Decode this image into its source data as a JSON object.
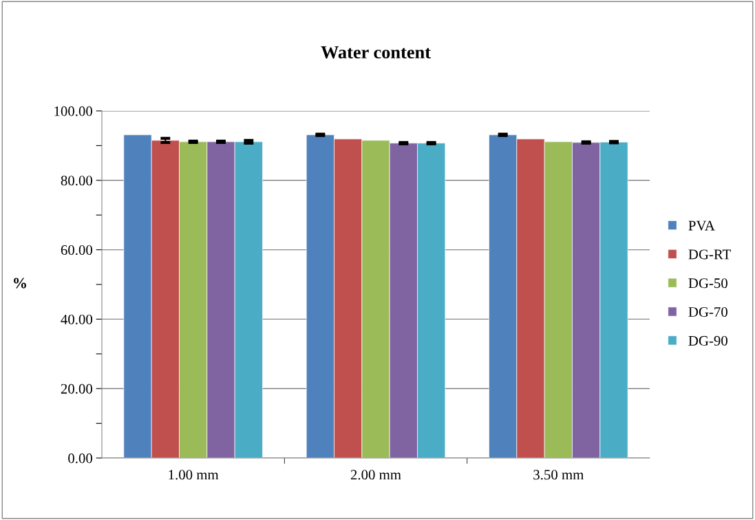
{
  "chart_data": {
    "type": "bar",
    "title": "Water content",
    "ylabel": "%",
    "categories": [
      "1.00 mm",
      "2.00 mm",
      "3.50 mm"
    ],
    "series": [
      {
        "name": "PVA",
        "color": "#4f81bd",
        "values": [
          93.1,
          93.1,
          93.1
        ],
        "errors": [
          null,
          0.2,
          0.2
        ]
      },
      {
        "name": "DG-RT",
        "color": "#c0504d",
        "values": [
          91.5,
          91.9,
          91.9
        ],
        "errors": [
          0.6,
          null,
          null
        ]
      },
      {
        "name": "DG-50",
        "color": "#9bbb59",
        "values": [
          91.1,
          91.5,
          91.1
        ],
        "errors": [
          0.2,
          null,
          null
        ]
      },
      {
        "name": "DG-70",
        "color": "#8064a2",
        "values": [
          91.1,
          90.7,
          90.9
        ],
        "errors": [
          0.2,
          0.2,
          0.2
        ]
      },
      {
        "name": "DG-90",
        "color": "#4bacc6",
        "values": [
          91.1,
          90.7,
          91.0
        ],
        "errors": [
          0.4,
          0.2,
          0.2
        ]
      }
    ],
    "ylim": [
      0,
      100
    ],
    "yticks": [
      {
        "value": 0,
        "label": "0.00"
      },
      {
        "value": 10,
        "label": null
      },
      {
        "value": 20,
        "label": "20.00"
      },
      {
        "value": 30,
        "label": null
      },
      {
        "value": 40,
        "label": "40.00"
      },
      {
        "value": 50,
        "label": null
      },
      {
        "value": 60,
        "label": "60.00"
      },
      {
        "value": 70,
        "label": null
      },
      {
        "value": 80,
        "label": "80.00"
      },
      {
        "value": 90,
        "label": null
      },
      {
        "value": 100,
        "label": "100.00"
      }
    ],
    "grid": "y",
    "legend": "right"
  }
}
